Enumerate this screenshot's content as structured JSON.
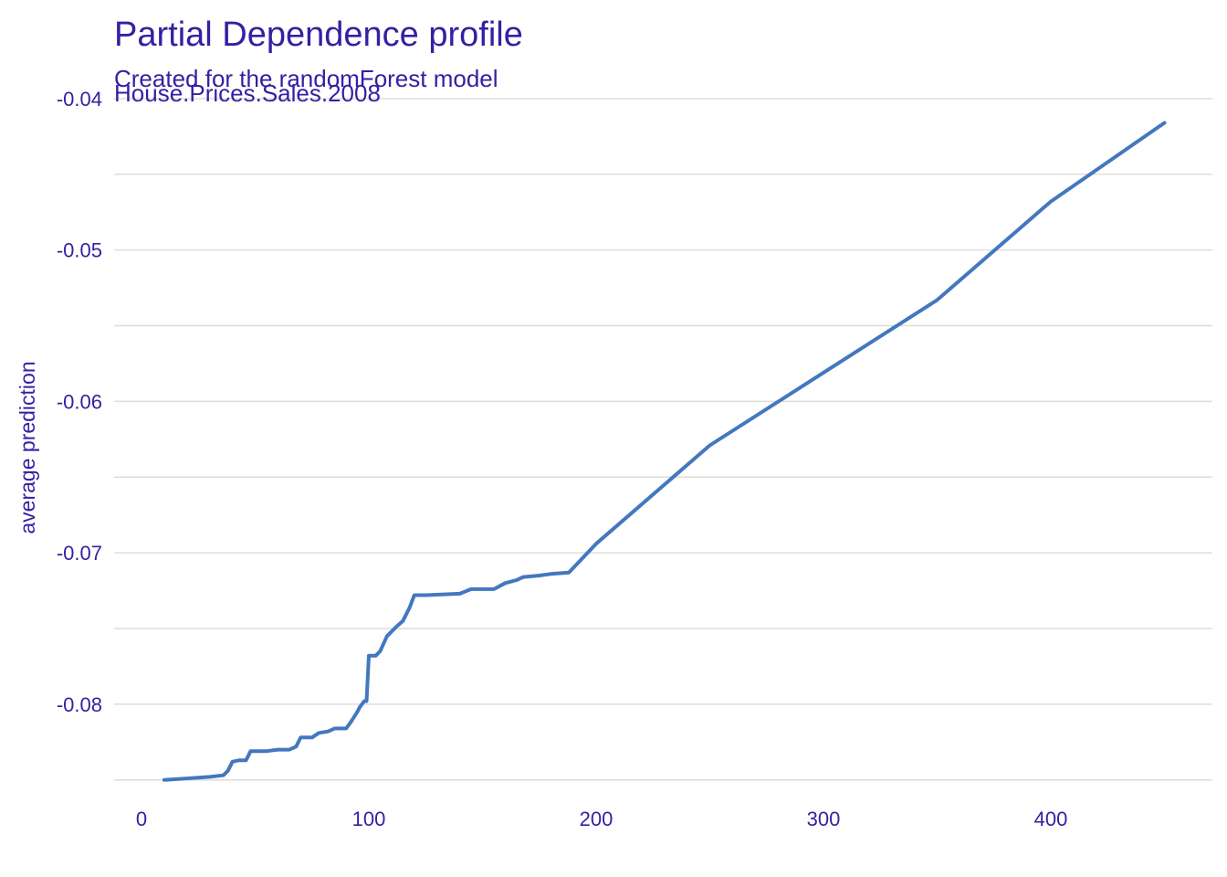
{
  "chart_data": {
    "type": "line",
    "title": "Partial Dependence profile",
    "subtitle_lines": [
      "Created for the randomForest model",
      "House.Prices.Sales.2008"
    ],
    "xlabel": "",
    "ylabel": "average prediction",
    "xlim": [
      0,
      460
    ],
    "ylim": [
      -0.0855,
      -0.0394
    ],
    "x_ticks": [
      {
        "value": 0,
        "label": "0"
      },
      {
        "value": 100,
        "label": "100"
      },
      {
        "value": 200,
        "label": "200"
      },
      {
        "value": 300,
        "label": "300"
      },
      {
        "value": 400,
        "label": "400"
      }
    ],
    "y_ticks": [
      {
        "value": -0.04,
        "label": "-0.04"
      },
      {
        "value": -0.05,
        "label": "-0.05"
      },
      {
        "value": -0.06,
        "label": "-0.06"
      },
      {
        "value": -0.07,
        "label": "-0.07"
      },
      {
        "value": -0.08,
        "label": "-0.08"
      }
    ],
    "y_minor_gridlines": [
      -0.085,
      -0.075,
      -0.065,
      -0.055,
      -0.045
    ],
    "grid": true,
    "legend": "none",
    "series": [
      {
        "color": "#4378bf",
        "x": [
          10,
          20,
          30,
          36,
          38,
          40,
          43,
          46,
          48,
          55,
          60,
          65,
          68,
          70,
          75,
          78,
          82,
          85,
          90,
          92,
          95,
          96,
          98,
          99,
          100,
          103,
          105,
          108,
          112,
          115,
          118,
          120,
          125,
          140,
          145,
          155,
          160,
          165,
          168,
          175,
          180,
          188,
          200,
          250,
          300,
          350,
          400,
          450
        ],
        "y": [
          -0.085,
          -0.0849,
          -0.0848,
          -0.0847,
          -0.0844,
          -0.0838,
          -0.0837,
          -0.0837,
          -0.0831,
          -0.0831,
          -0.083,
          -0.083,
          -0.0828,
          -0.0822,
          -0.0822,
          -0.0819,
          -0.0818,
          -0.0816,
          -0.0816,
          -0.0812,
          -0.0805,
          -0.0802,
          -0.0798,
          -0.0798,
          -0.0768,
          -0.0768,
          -0.0765,
          -0.0755,
          -0.0749,
          -0.0745,
          -0.0736,
          -0.0728,
          -0.0728,
          -0.0727,
          -0.0724,
          -0.0724,
          -0.072,
          -0.0718,
          -0.0716,
          -0.0715,
          -0.0714,
          -0.0713,
          -0.0694,
          -0.0629,
          -0.0581,
          -0.0533,
          -0.0468,
          -0.0416
        ]
      }
    ],
    "colors": {
      "text": "#371ea3",
      "grid": "#dddddd",
      "line": "#4378bf",
      "background": "#ffffff"
    }
  }
}
